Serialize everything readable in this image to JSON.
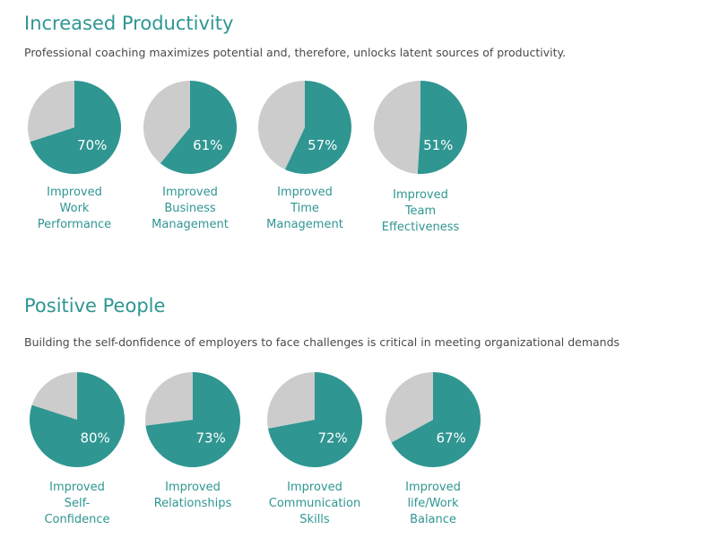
{
  "colors": {
    "accent": "#2f9692",
    "rest": "#cccccc",
    "value_text": "#ffffff"
  },
  "sections": [
    {
      "title": "Increased Productivity",
      "subtitle": "Professional coaching maximizes potential and, therefore, unlocks latent sources of productivity."
    },
    {
      "title": "Positive People",
      "subtitle": "Building the self-donfidence of employers to face challenges is critical in meeting organizational demands"
    }
  ],
  "chart_data": [
    {
      "type": "pie",
      "title": "Improved Work Performance",
      "label_lines": [
        "Improved",
        "Work",
        "Performance"
      ],
      "value_label": "70%",
      "slices": [
        {
          "name": "Improved",
          "value": 70,
          "color": "#2f9692"
        },
        {
          "name": "",
          "value": 30,
          "color": "#cccccc"
        }
      ]
    },
    {
      "type": "pie",
      "title": "Improved Business Management",
      "label_lines": [
        "Improved",
        "Business",
        "Management"
      ],
      "value_label": "61%",
      "slices": [
        {
          "name": "Improved",
          "value": 61,
          "color": "#2f9692"
        },
        {
          "name": "",
          "value": 39,
          "color": "#cccccc"
        }
      ]
    },
    {
      "type": "pie",
      "title": "Improved Time Management",
      "label_lines": [
        "Improved",
        "Time",
        "Management"
      ],
      "value_label": "57%",
      "slices": [
        {
          "name": "Improved",
          "value": 57,
          "color": "#2f9692"
        },
        {
          "name": "",
          "value": 43,
          "color": "#cccccc"
        }
      ]
    },
    {
      "type": "pie",
      "title": "Improved Team Effectiveness",
      "label_lines": [
        "Improved",
        "Team",
        "Effectiveness"
      ],
      "value_label": "51%",
      "slices": [
        {
          "name": "Improved",
          "value": 51,
          "color": "#2f9692"
        },
        {
          "name": "",
          "value": 49,
          "color": "#cccccc"
        }
      ]
    },
    {
      "type": "pie",
      "title": "Improved Self-Confidence",
      "label_lines": [
        "Improved",
        "Self-",
        "Confidence"
      ],
      "value_label": "80%",
      "slices": [
        {
          "name": "Improved",
          "value": 80,
          "color": "#2f9692"
        },
        {
          "name": "",
          "value": 20,
          "color": "#cccccc"
        }
      ]
    },
    {
      "type": "pie",
      "title": "Improved Relationships",
      "label_lines": [
        "Improved",
        "Relationships"
      ],
      "value_label": "73%",
      "slices": [
        {
          "name": "Improved",
          "value": 73,
          "color": "#2f9692"
        },
        {
          "name": "",
          "value": 27,
          "color": "#cccccc"
        }
      ]
    },
    {
      "type": "pie",
      "title": "Improved Communication Skills",
      "label_lines": [
        "Improved",
        "Communication",
        "Skills"
      ],
      "value_label": "72%",
      "slices": [
        {
          "name": "Improved",
          "value": 72,
          "color": "#2f9692"
        },
        {
          "name": "",
          "value": 28,
          "color": "#cccccc"
        }
      ]
    },
    {
      "type": "pie",
      "title": "Improved life/Work Balance",
      "label_lines": [
        "Improved",
        "life/Work",
        "Balance"
      ],
      "value_label": "67%",
      "slices": [
        {
          "name": "Improved",
          "value": 67,
          "color": "#2f9692"
        },
        {
          "name": "",
          "value": 33,
          "color": "#cccccc"
        }
      ]
    }
  ]
}
